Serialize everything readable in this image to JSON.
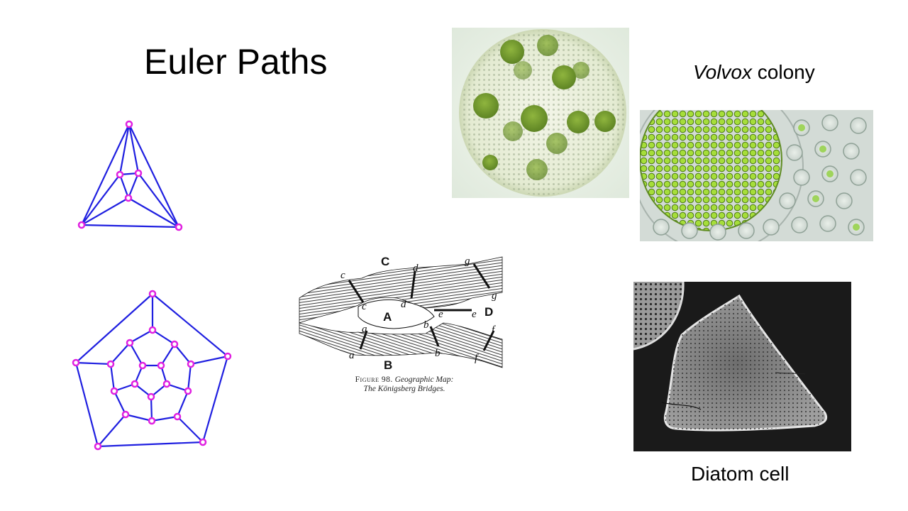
{
  "slide": {
    "title": "Euler Paths",
    "volvox_caption": {
      "italic": "Volvox",
      "rest": " colony"
    },
    "diatom_caption": "Diatom cell",
    "figure_caption": {
      "number": "Figure 98.",
      "line1_rest": "Geographic Map:",
      "line2": "The Königsberg Bridges."
    },
    "map_labels": {
      "regions": [
        "A",
        "B",
        "C",
        "D"
      ],
      "bridges": [
        "a",
        "a",
        "b",
        "b",
        "c",
        "c",
        "d",
        "d",
        "e",
        "e",
        "f",
        "f",
        "g",
        "g"
      ]
    }
  },
  "colors": {
    "graph_edge": "#1f1fe0",
    "graph_vertex": "#e020e0",
    "volvox_background": "#e8f2e4",
    "volvox_daughter": "#6f9a2a",
    "diatom_background": "#1a1a1a",
    "diatom_cell": "#8c8c8c"
  }
}
